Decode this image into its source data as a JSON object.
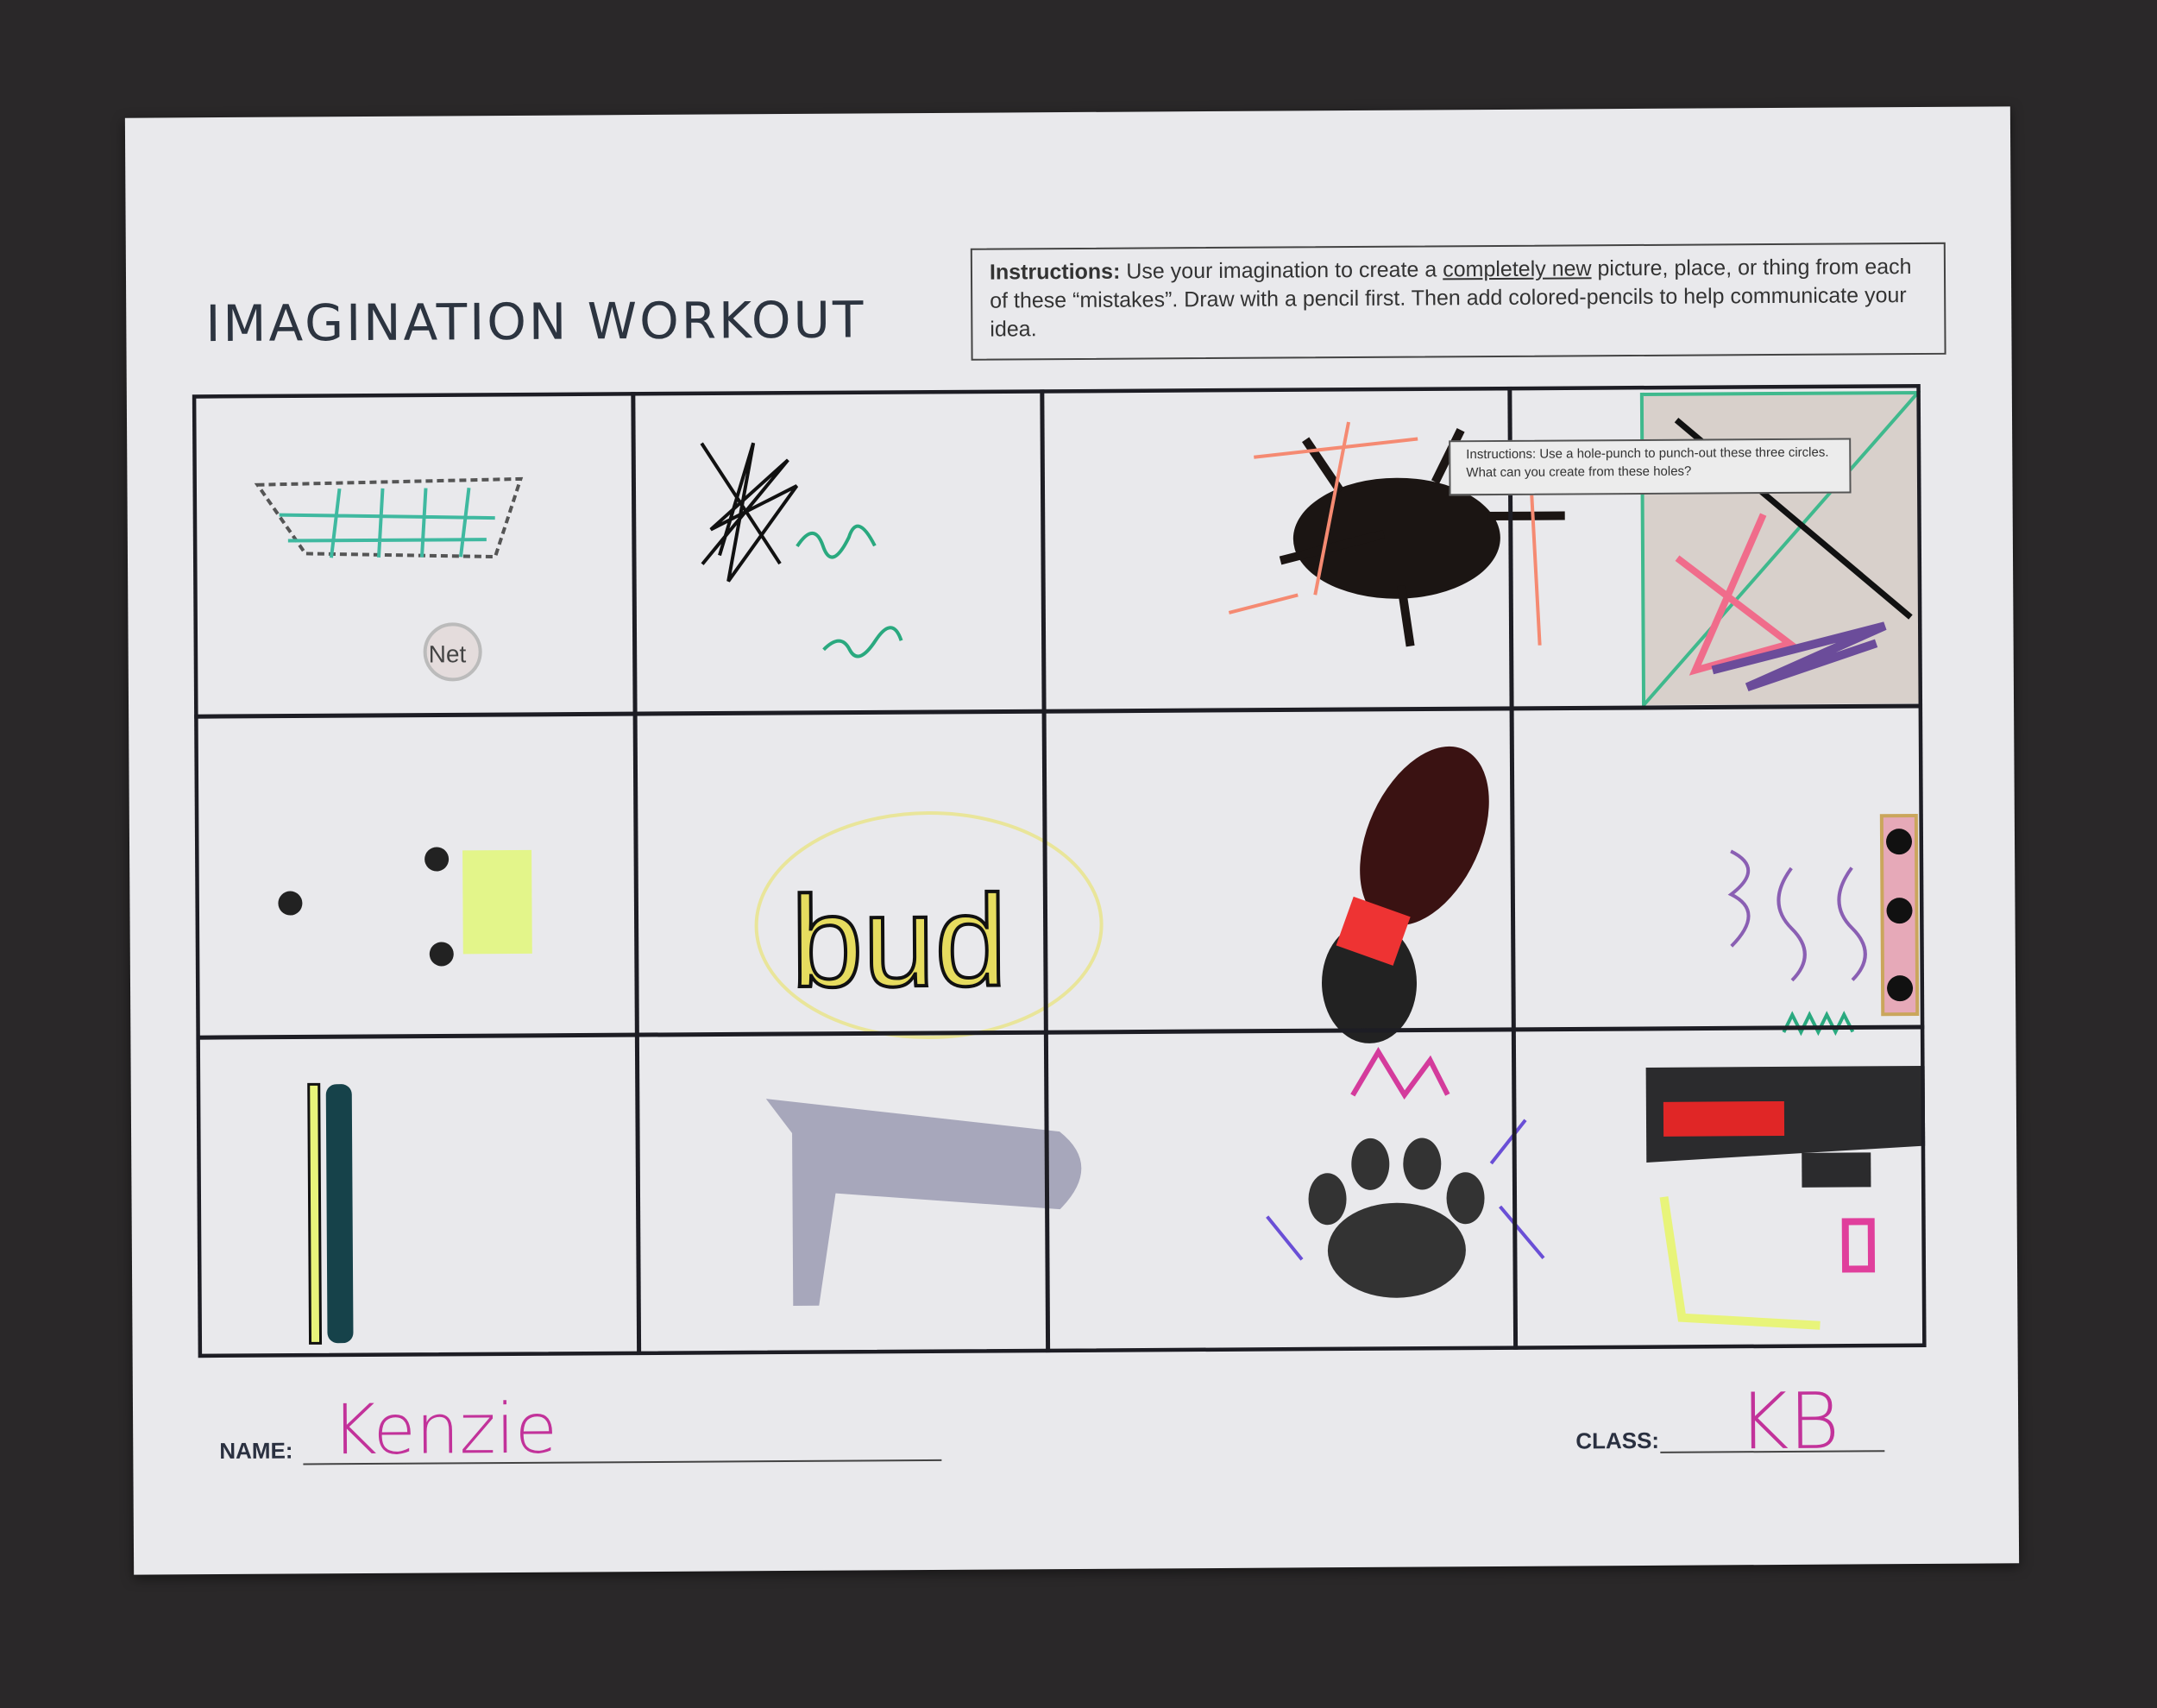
{
  "worksheet": {
    "title": "IMAGINATION WORKOUT",
    "instructions": {
      "label": "Instructions:",
      "text_before": "Use your imagination to create a",
      "emphasis": "completely new",
      "text_after": "picture, place, or thing from each of these “mistakes”.  Draw with a pencil first.  Then add colored-pencils to help communicate your idea."
    },
    "hole_punch_instructions": "Instructions:  Use a hole-punch to punch-out these three circles. What can you create from these holes?",
    "drawing_labels": {
      "net": "Net",
      "bud": "bud"
    },
    "name_label": "NAME:",
    "name_value": "Kenzie",
    "class_label": "CLASS:",
    "class_value": "KB",
    "colors": {
      "paper": "#e9e9ec",
      "background": "#2a2829",
      "handwriting": "#c2329a"
    }
  }
}
